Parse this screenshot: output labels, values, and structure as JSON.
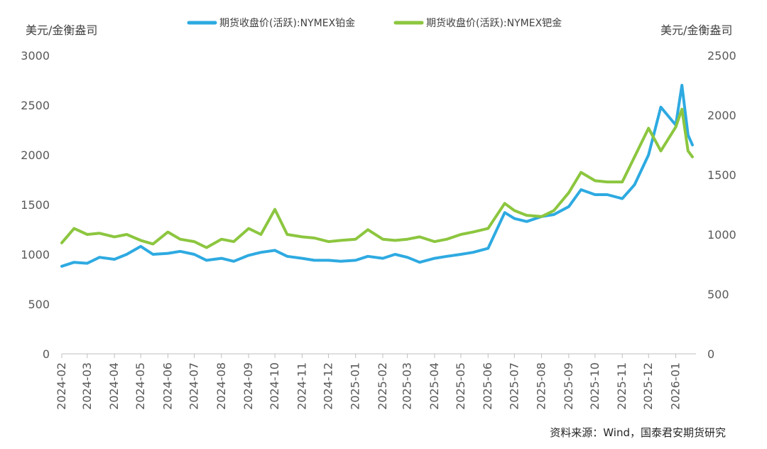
{
  "chart_data": {
    "type": "line",
    "title": "",
    "yunit_left": "美元/金衡盎司",
    "yunit_right": "美元/金衡盎司",
    "ylim_left": [
      0,
      3000
    ],
    "ylim_right": [
      0,
      2500
    ],
    "yticks_left": [
      0,
      500,
      1000,
      1500,
      2000,
      2500,
      3000
    ],
    "yticks_right": [
      0,
      500,
      1000,
      1500,
      2000,
      2500
    ],
    "x_range": [
      "2024-02-01",
      "2026-01-20"
    ],
    "x_ticks": [
      "2024-02",
      "2024-03",
      "2024-04",
      "2024-05",
      "2024-06",
      "2024-07",
      "2024-08",
      "2024-09",
      "2024-10",
      "2024-11",
      "2024-12",
      "2025-01",
      "2025-02",
      "2025-03",
      "2025-04",
      "2025-05",
      "2025-06",
      "2025-07",
      "2025-08",
      "2025-09",
      "2025-10",
      "2025-11",
      "2025-12",
      "2026-01"
    ],
    "series": [
      {
        "name": "期货收盘价(活跃):NYMEX铂金",
        "axis": "left",
        "color": "#2EAAE1",
        "x": [
          "2024-02-01",
          "2024-02-15",
          "2024-03-01",
          "2024-03-15",
          "2024-04-01",
          "2024-04-15",
          "2024-05-01",
          "2024-05-15",
          "2024-06-01",
          "2024-06-15",
          "2024-07-01",
          "2024-07-15",
          "2024-08-01",
          "2024-08-15",
          "2024-09-01",
          "2024-09-15",
          "2024-10-01",
          "2024-10-15",
          "2024-11-01",
          "2024-11-15",
          "2024-12-01",
          "2024-12-15",
          "2025-01-01",
          "2025-01-15",
          "2025-02-01",
          "2025-02-15",
          "2025-03-01",
          "2025-03-15",
          "2025-04-01",
          "2025-04-15",
          "2025-05-01",
          "2025-05-15",
          "2025-06-01",
          "2025-06-10",
          "2025-06-20",
          "2025-07-01",
          "2025-07-15",
          "2025-08-01",
          "2025-08-15",
          "2025-09-01",
          "2025-09-15",
          "2025-10-01",
          "2025-10-15",
          "2025-11-01",
          "2025-11-15",
          "2025-12-01",
          "2025-12-15",
          "2026-01-01",
          "2026-01-08",
          "2026-01-15",
          "2026-01-20"
        ],
        "values": [
          880,
          920,
          910,
          970,
          950,
          1000,
          1080,
          1000,
          1010,
          1030,
          1000,
          940,
          960,
          930,
          990,
          1020,
          1040,
          980,
          960,
          940,
          940,
          930,
          940,
          980,
          960,
          1000,
          970,
          920,
          960,
          980,
          1000,
          1020,
          1060,
          1230,
          1420,
          1360,
          1330,
          1380,
          1400,
          1480,
          1650,
          1600,
          1600,
          1560,
          1700,
          2000,
          2480,
          2300,
          2700,
          2200,
          2100
        ]
      },
      {
        "name": "期货收盘价(活跃):NYMEX钯金",
        "axis": "right",
        "color": "#8CC63F",
        "x": [
          "2024-02-01",
          "2024-02-15",
          "2024-03-01",
          "2024-03-15",
          "2024-04-01",
          "2024-04-15",
          "2024-05-01",
          "2024-05-15",
          "2024-06-01",
          "2024-06-15",
          "2024-07-01",
          "2024-07-15",
          "2024-08-01",
          "2024-08-15",
          "2024-09-01",
          "2024-09-15",
          "2024-10-01",
          "2024-10-15",
          "2024-11-01",
          "2024-11-15",
          "2024-12-01",
          "2024-12-15",
          "2025-01-01",
          "2025-01-15",
          "2025-02-01",
          "2025-02-15",
          "2025-03-01",
          "2025-03-15",
          "2025-04-01",
          "2025-04-15",
          "2025-05-01",
          "2025-05-15",
          "2025-06-01",
          "2025-06-10",
          "2025-06-20",
          "2025-07-01",
          "2025-07-15",
          "2025-08-01",
          "2025-08-15",
          "2025-09-01",
          "2025-09-15",
          "2025-10-01",
          "2025-10-15",
          "2025-11-01",
          "2025-11-15",
          "2025-12-01",
          "2025-12-15",
          "2026-01-01",
          "2026-01-08",
          "2026-01-15",
          "2026-01-20"
        ],
        "values": [
          930,
          1050,
          1000,
          1010,
          980,
          1000,
          950,
          920,
          1020,
          960,
          940,
          890,
          960,
          940,
          1050,
          1000,
          1210,
          1000,
          980,
          970,
          940,
          950,
          960,
          1040,
          960,
          950,
          960,
          980,
          940,
          960,
          1000,
          1020,
          1050,
          1150,
          1260,
          1200,
          1160,
          1150,
          1200,
          1350,
          1520,
          1450,
          1440,
          1440,
          1650,
          1890,
          1700,
          1900,
          2050,
          1700,
          1650
        ]
      }
    ]
  },
  "source_label": "资料来源：Wind，国泰君安期货研究"
}
